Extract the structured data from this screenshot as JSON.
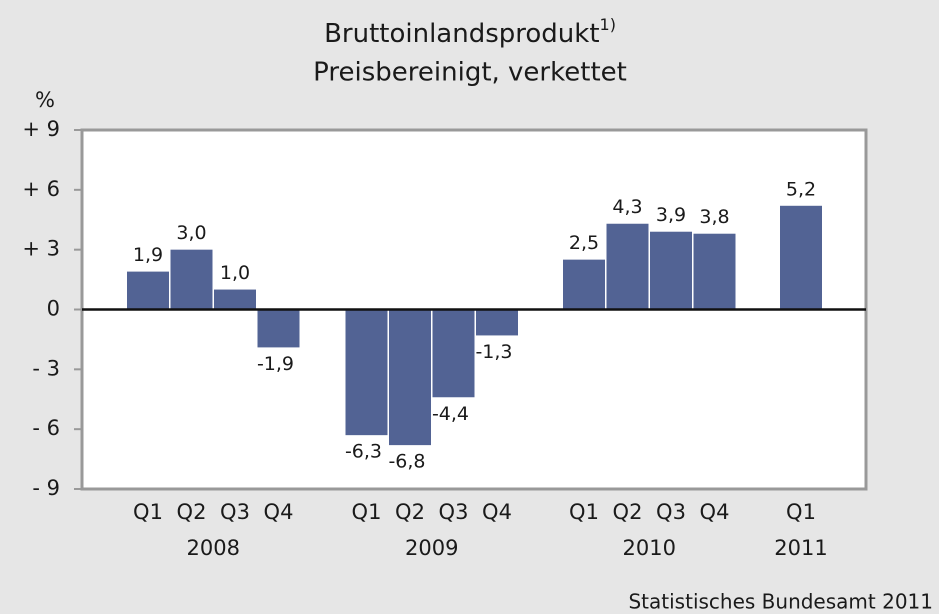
{
  "chart_data": {
    "type": "bar",
    "title": "Bruttoinlandsprodukt",
    "title_note": "1)",
    "subtitle": "Preisbereinigt, verkettet",
    "y_axis_label": "%",
    "source": "Statistisches Bundesamt 2011",
    "color": "#526394",
    "ylim": [
      -9,
      9
    ],
    "yticks": [
      {
        "value": -9,
        "label": "- 9"
      },
      {
        "value": -6,
        "label": "- 6"
      },
      {
        "value": -3,
        "label": "- 3"
      },
      0,
      {
        "value": 3,
        "label": "+ 3"
      },
      {
        "value": 6,
        "label": "+ 6"
      },
      {
        "value": 9,
        "label": "+ 9"
      }
    ],
    "groups": [
      {
        "label": "2008",
        "categories": [
          "Q1",
          "Q2",
          "Q3",
          "Q4"
        ],
        "values": [
          1.9,
          3.0,
          1.0,
          -1.9
        ],
        "value_labels": [
          "1,9",
          "3,0",
          "1,0",
          "-1,9"
        ]
      },
      {
        "label": "2009",
        "categories": [
          "Q1",
          "Q2",
          "Q3",
          "Q4"
        ],
        "values": [
          -6.3,
          -6.8,
          -4.4,
          -1.3
        ],
        "value_labels": [
          "-6,3",
          "-6,8",
          "-4,4",
          "-1,3"
        ]
      },
      {
        "label": "2010",
        "categories": [
          "Q1",
          "Q2",
          "Q3",
          "Q4"
        ],
        "values": [
          2.5,
          4.3,
          3.9,
          3.8
        ],
        "value_labels": [
          "2,5",
          "4,3",
          "3,9",
          "3,8"
        ]
      },
      {
        "label": "2011",
        "categories": [
          "Q1"
        ],
        "values": [
          5.2
        ],
        "value_labels": [
          "5,2"
        ]
      }
    ]
  }
}
